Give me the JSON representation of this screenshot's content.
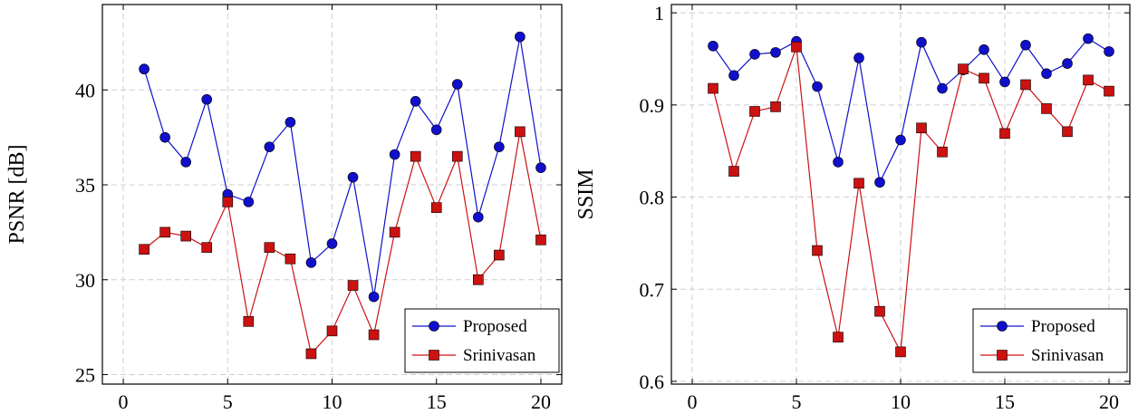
{
  "colors": {
    "proposed": "#1010cc",
    "srinivasan": "#cc1111"
  },
  "chart_data": [
    {
      "type": "line",
      "title": "",
      "xlabel": "",
      "ylabel": "PSNR [dB]",
      "xlim": [
        -1,
        21
      ],
      "ylim": [
        24.5,
        44.5
      ],
      "xticks": [
        0,
        5,
        10,
        15,
        20
      ],
      "yticks": [
        25,
        30,
        35,
        40
      ],
      "ytick_labels": [
        "25",
        "30",
        "35",
        "40"
      ],
      "grid": true,
      "legend": "bottom-right",
      "x": [
        1,
        2,
        3,
        4,
        5,
        6,
        7,
        8,
        9,
        10,
        11,
        12,
        13,
        14,
        15,
        16,
        17,
        18,
        19,
        20
      ],
      "series": [
        {
          "name": "Proposed",
          "marker": "circle",
          "color_key": "proposed",
          "values": [
            41.1,
            37.5,
            36.2,
            39.5,
            34.5,
            34.1,
            37.0,
            38.3,
            30.9,
            31.9,
            35.4,
            29.1,
            36.6,
            39.4,
            37.9,
            40.3,
            33.3,
            37.0,
            42.8,
            35.9
          ]
        },
        {
          "name": "Srinivasan",
          "marker": "square",
          "color_key": "srinivasan",
          "values": [
            31.6,
            32.5,
            32.3,
            31.7,
            34.1,
            27.8,
            31.7,
            31.1,
            26.1,
            27.3,
            29.7,
            27.1,
            32.5,
            36.5,
            33.8,
            36.5,
            30.0,
            31.3,
            37.8,
            32.1
          ]
        }
      ]
    },
    {
      "type": "line",
      "title": "",
      "xlabel": "",
      "ylabel": "SSIM",
      "xlim": [
        -1,
        21
      ],
      "ylim": [
        0.597,
        1.009
      ],
      "xticks": [
        0,
        5,
        10,
        15,
        20
      ],
      "yticks": [
        0.6,
        0.7,
        0.8,
        0.9,
        1.0
      ],
      "ytick_labels": [
        "0.6",
        "0.7",
        "0.8",
        "0.9",
        "1"
      ],
      "grid": true,
      "legend": "bottom-right",
      "x": [
        1,
        2,
        3,
        4,
        5,
        6,
        7,
        8,
        9,
        10,
        11,
        12,
        13,
        14,
        15,
        16,
        17,
        18,
        19,
        20
      ],
      "series": [
        {
          "name": "Proposed",
          "marker": "circle",
          "color_key": "proposed",
          "values": [
            0.964,
            0.932,
            0.955,
            0.957,
            0.969,
            0.92,
            0.838,
            0.951,
            0.816,
            0.862,
            0.968,
            0.918,
            0.938,
            0.96,
            0.925,
            0.965,
            0.934,
            0.945,
            0.972,
            0.958
          ]
        },
        {
          "name": "Srinivasan",
          "marker": "square",
          "color_key": "srinivasan",
          "values": [
            0.918,
            0.828,
            0.893,
            0.898,
            0.963,
            0.742,
            0.648,
            0.815,
            0.676,
            0.632,
            0.875,
            0.849,
            0.939,
            0.929,
            0.869,
            0.922,
            0.896,
            0.871,
            0.927,
            0.915
          ]
        }
      ]
    }
  ]
}
